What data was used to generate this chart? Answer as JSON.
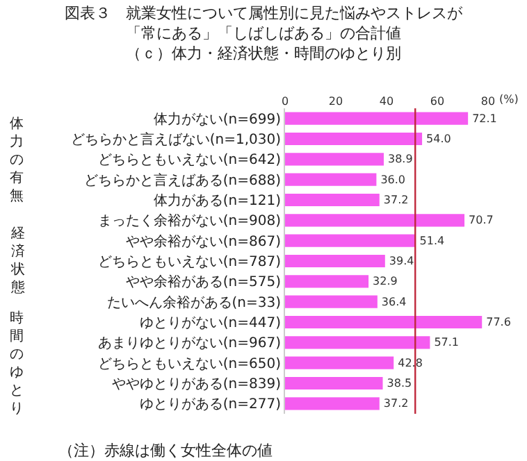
{
  "chart_data": {
    "type": "bar",
    "orientation": "horizontal",
    "title": "図表３　就業女性について属性別に見た悩みやストレスが「常にある」「しばしばある」の合計値",
    "subtitle": "（ｃ）体力・経済状態・時間のゆとり別",
    "xlabel": "(%)",
    "categories": [
      "体力がない(n=699)",
      "どちらかと言えばない(n=1,030)",
      "どちらともいえない(n=642)",
      "どちらかと言えばある(n=688)",
      "体力がある(n=121)",
      "まったく余裕がない(n=908)",
      "やや余裕がない(n=867)",
      "どちらともいえない(n=787)",
      "やや余裕がある(n=575)",
      "たいへん余裕がある(n=33)",
      "ゆとりがない(n=447)",
      "あまりゆとりがない(n=967)",
      "どちらともいえない(n=650)",
      "ややゆとりがある(n=839)",
      "ゆとりがある(n=277)"
    ],
    "values": [
      72.1,
      54.0,
      38.9,
      36.0,
      37.2,
      70.7,
      51.4,
      39.4,
      32.9,
      36.4,
      77.6,
      57.1,
      42.8,
      38.5,
      37.2
    ],
    "value_labels": [
      "72.1",
      "54.0",
      "38.9",
      "36.0",
      "37.2",
      "70.7",
      "51.4",
      "39.4",
      "32.9",
      "36.4",
      "77.6",
      "57.1",
      "42.8",
      "38.5",
      "37.2"
    ],
    "color": "#f55cf0",
    "xlim": [
      0,
      80
    ],
    "xticks": [
      0,
      20,
      40,
      60,
      80
    ],
    "ref_lines": [
      {
        "axis": "x",
        "value": 51.3,
        "color": "#c0283c"
      }
    ],
    "annotations": [
      "体力の有無",
      "経済状態",
      "時間のゆとり",
      "（注）赤線は働く女性全体の値"
    ]
  }
}
